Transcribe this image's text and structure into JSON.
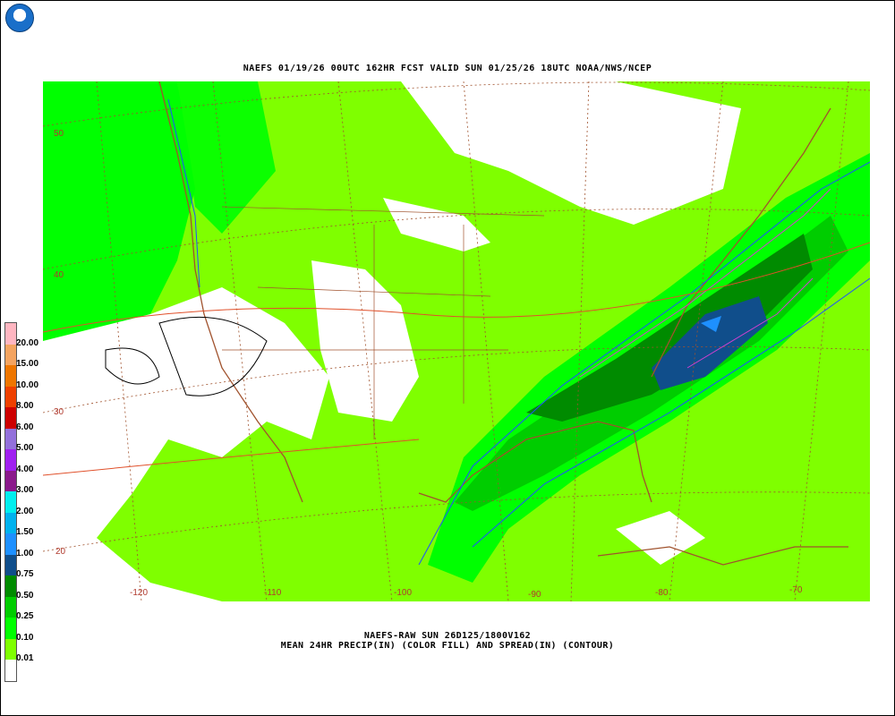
{
  "header": {
    "logo_text": "NOAA",
    "title": "NAEFS 01/19/26 00UTC 162HR FCST VALID SUN 01/25/26 18UTC NOAA/NWS/NCEP"
  },
  "footer": {
    "line1": "NAEFS-RAW SUN 26D125/1800V162",
    "line2": "MEAN 24HR PRECIP(IN) (COLOR FILL) AND SPREAD(IN) (CONTOUR)"
  },
  "legend": {
    "labels": [
      "20.00",
      "15.00",
      "10.00",
      "8.00",
      "6.00",
      "5.00",
      "4.00",
      "3.00",
      "2.00",
      "1.50",
      "1.00",
      "0.75",
      "0.50",
      "0.25",
      "0.10",
      "0.01"
    ],
    "colors": [
      "#ffb6c1",
      "#f4a460",
      "#ee7600",
      "#ee4000",
      "#cd0000",
      "#9370db",
      "#a020f0",
      "#8b1a8b",
      "#00eeee",
      "#00b2ee",
      "#1e90ff",
      "#104e8b",
      "#008b00",
      "#00cd00",
      "#00ff00",
      "#7fff00",
      "#ffffff"
    ]
  },
  "map": {
    "lat_labels": [
      "50",
      "40",
      "30",
      "20"
    ],
    "lon_labels": [
      "-120",
      "-110",
      "-100",
      "-90",
      "-80",
      "-70"
    ],
    "colors": {
      "coast": "#a0522d",
      "spread_low": "#e0502a",
      "spread_mid": "#1e50ff",
      "spread_high": "#d040d0",
      "zero": "#000000"
    }
  }
}
